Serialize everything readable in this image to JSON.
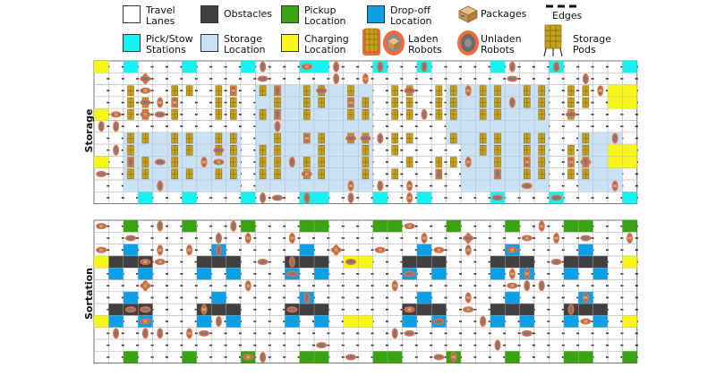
{
  "legend": {
    "travel_lanes": "Travel\nLanes",
    "obstacles": "Obstacles",
    "pickup": "Pickup\nLocation",
    "dropoff": "Drop-off\nLocation",
    "packages": "Packages",
    "edges": "Edges",
    "stations": "Pick/Stow\nStations",
    "storage_location": "Storage\nLocation",
    "charging": "Charging\nLocation",
    "laden": "Laden\nRobots",
    "unladen": "Unladen\nRobots",
    "pods": "Storage\nPods"
  },
  "panels": {
    "storage": "Storage",
    "sortation": "Sortation"
  },
  "colors": {
    "lane": "#ffffff",
    "obstacle": "#404040",
    "pickup": "#3aa312",
    "dropoff": "#0aa0e8",
    "station": "#16f2f2",
    "storage_location": "#c9e2f5",
    "charging": "#f7f51a",
    "pod": "#c7a21a",
    "robot": "#f26a3d",
    "package": "#d9a45a"
  }
}
